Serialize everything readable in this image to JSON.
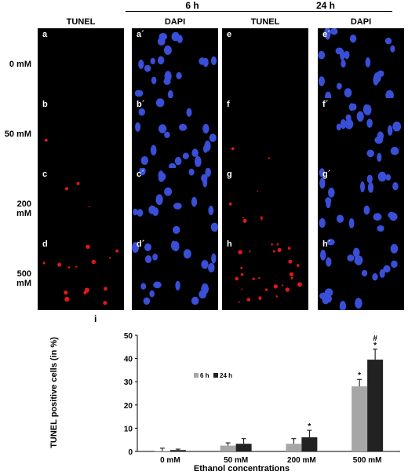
{
  "figure": {
    "time_groups": [
      "6 h",
      "24 h"
    ],
    "columns": [
      "TUNEL",
      "DAPI",
      "TUNEL",
      "DAPI"
    ],
    "rows": [
      "0 mM",
      "50 mM",
      "200 mM",
      "500 mM"
    ],
    "panel_labels": [
      [
        "a",
        "a´",
        "e",
        "e´"
      ],
      [
        "b",
        "b´",
        "f",
        "f´"
      ],
      [
        "c",
        "c´",
        "g",
        "g´"
      ],
      [
        "d",
        "d´",
        "h",
        "h´"
      ]
    ],
    "stain_colors": {
      "TUNEL": "#e01818",
      "DAPI": "#3a4fd8"
    }
  },
  "chart_data": {
    "type": "bar",
    "panel_label": "i",
    "title": "",
    "xlabel": "Ethanol concentrations",
    "ylabel": "TUNEL positive cells (in %)",
    "ylim": [
      0,
      50
    ],
    "yticks": [
      0,
      10,
      20,
      30,
      40,
      50
    ],
    "categories": [
      "0 mM",
      "50 mM",
      "200 mM",
      "500 mM"
    ],
    "series": [
      {
        "name": "6 h",
        "color": "#a6a6a6",
        "values": [
          0.2,
          2.5,
          3.3,
          28
        ],
        "errors": [
          1.2,
          1.2,
          2.2,
          3.0
        ]
      },
      {
        "name": "24 h",
        "color": "#222222",
        "values": [
          0.6,
          3.3,
          6.1,
          39.5
        ],
        "errors": [
          0.4,
          2.2,
          3.0,
          4.5
        ]
      }
    ],
    "annotations": [
      {
        "series": 1,
        "category": 2,
        "text": "*"
      },
      {
        "series": 0,
        "category": 3,
        "text": "*"
      },
      {
        "series": 1,
        "category": 3,
        "text": "*"
      },
      {
        "series": 1,
        "category": 3,
        "text": "#"
      }
    ],
    "legend_position": "center-left"
  }
}
